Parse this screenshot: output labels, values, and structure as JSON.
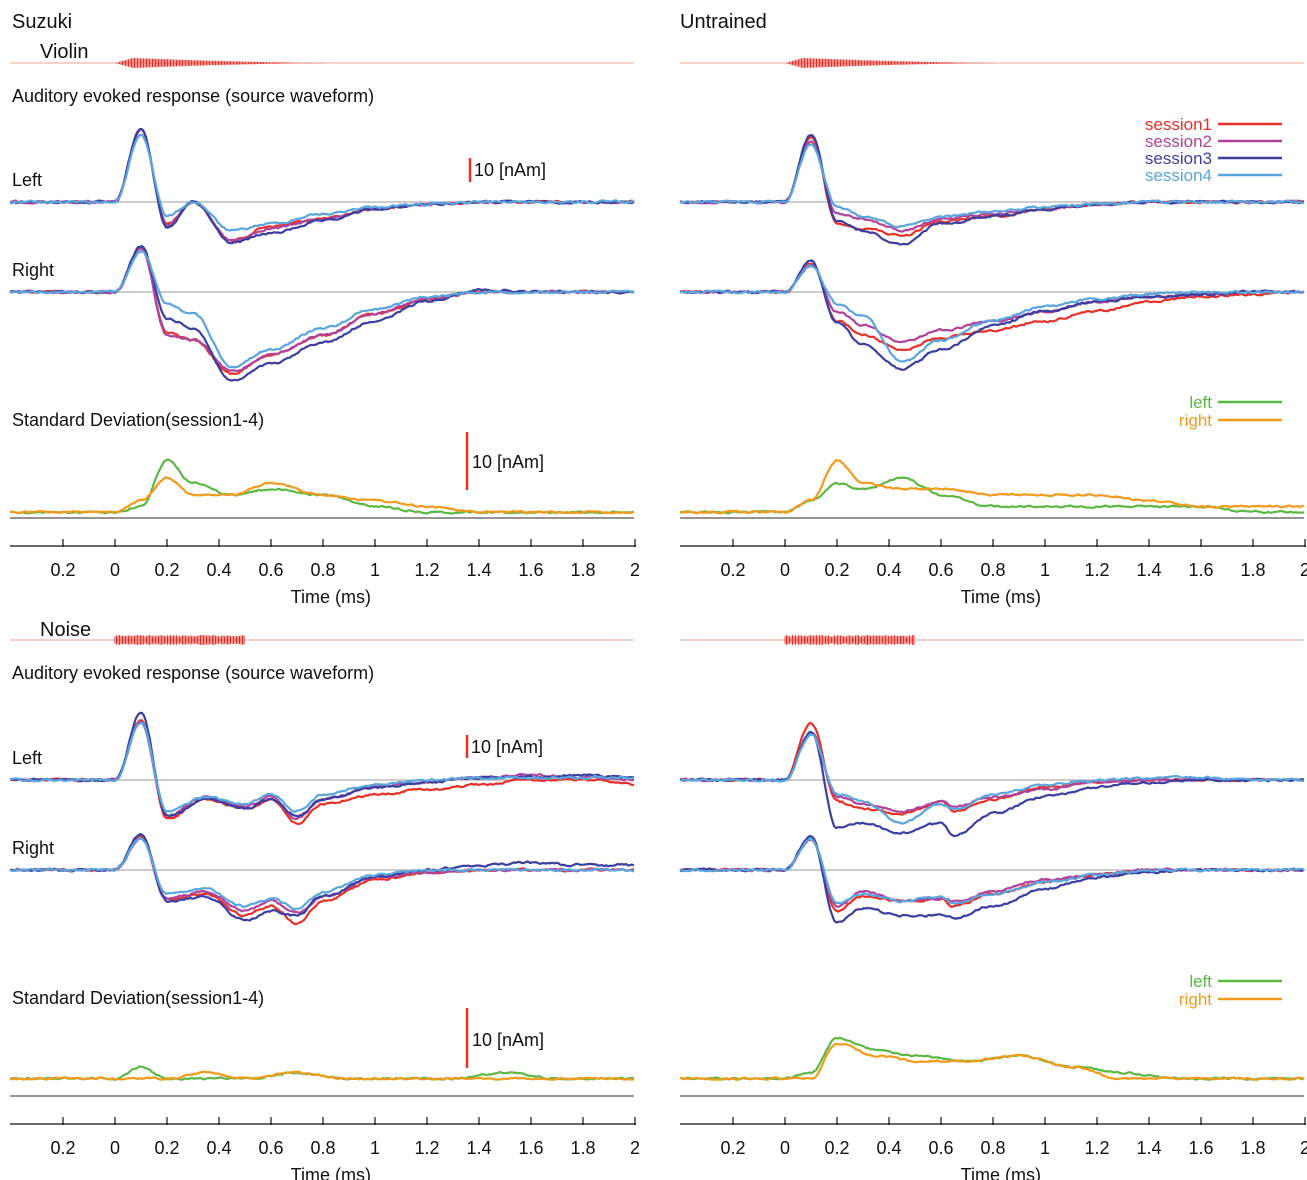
{
  "figure": {
    "group_titles": [
      "Suzuki",
      "Untrained"
    ],
    "stimulus_labels": [
      "Violin",
      "Noise"
    ],
    "aer_title": "Auditory evoked response (source waveform)",
    "sd_title": "Standard Deviation(session1-4)",
    "hemisphere_labels": [
      "Left",
      "Right"
    ],
    "scale_bar_label": "10 [nAm]",
    "x_axis_label": "Time (ms)",
    "x_tick_labels": [
      "0.2",
      "0",
      "0.2",
      "0.4",
      "0.6",
      "0.8",
      "1",
      "1.2",
      "1.4",
      "1.6",
      "1.8",
      "2"
    ]
  },
  "colors": {
    "session1": "#e8302a",
    "session2": "#b0449c",
    "session3": "#3a3fa0",
    "session4": "#5aa6dc",
    "left": "#5cb843",
    "right": "#f39a1c",
    "stimulus": "#e8302a",
    "baseline": "#666666"
  },
  "legends": {
    "sessions": [
      "session1",
      "session2",
      "session3",
      "session4"
    ],
    "hemispheres": [
      "left",
      "right"
    ]
  },
  "chart_data": [
    {
      "type": "line",
      "panel": "Suzuki / Violin / Left",
      "xlim": [
        -0.2,
        2
      ],
      "scale_bar_nAm": 10,
      "x": [
        -0.2,
        0,
        0.1,
        0.2,
        0.3,
        0.45,
        0.6,
        0.8,
        1.0,
        1.2,
        1.4,
        1.6,
        1.8,
        2.0
      ],
      "series": [
        {
          "name": "session1",
          "values": [
            0,
            0,
            30,
            -9,
            0,
            -16,
            -10,
            -7,
            -3,
            -1,
            0,
            0,
            0,
            0
          ]
        },
        {
          "name": "session2",
          "values": [
            0,
            0,
            30,
            -10,
            0,
            -16,
            -11,
            -7,
            -3,
            -1,
            0,
            0,
            0,
            0
          ]
        },
        {
          "name": "session3",
          "values": [
            0,
            0,
            31,
            -11,
            0,
            -17,
            -13,
            -8,
            -3,
            -1,
            0,
            0,
            0,
            0
          ]
        },
        {
          "name": "session4",
          "values": [
            0,
            0,
            28,
            -6,
            0,
            -12,
            -9,
            -5,
            -2,
            -1,
            0,
            0,
            0,
            0
          ]
        }
      ]
    },
    {
      "type": "line",
      "panel": "Suzuki / Violin / Right",
      "xlim": [
        -0.2,
        2
      ],
      "scale_bar_nAm": 10,
      "x": [
        -0.2,
        0,
        0.1,
        0.2,
        0.3,
        0.45,
        0.6,
        0.8,
        1.0,
        1.2,
        1.4,
        1.6,
        1.8,
        2.0
      ],
      "series": [
        {
          "name": "session1",
          "values": [
            0,
            0,
            18,
            -17,
            -20,
            -34,
            -26,
            -18,
            -9,
            -3,
            0,
            0,
            0,
            0
          ]
        },
        {
          "name": "session2",
          "values": [
            0,
            0,
            18,
            -18,
            -20,
            -33,
            -26,
            -18,
            -9,
            -3,
            0,
            0,
            0,
            0
          ]
        },
        {
          "name": "session3",
          "values": [
            0,
            0,
            19,
            -11,
            -15,
            -37,
            -30,
            -21,
            -12,
            -4,
            1,
            0,
            0,
            0
          ]
        },
        {
          "name": "session4",
          "values": [
            0,
            0,
            17,
            -5,
            -9,
            -31,
            -24,
            -15,
            -7,
            -2,
            0,
            0,
            0,
            0
          ]
        }
      ]
    },
    {
      "type": "line",
      "panel": "Suzuki / Violin / Standard Deviation",
      "xlim": [
        -0.2,
        2
      ],
      "scale_bar_nAm": 10,
      "x": [
        -0.2,
        0,
        0.1,
        0.2,
        0.3,
        0.45,
        0.6,
        0.8,
        1.0,
        1.2,
        1.4,
        1.6,
        1.8,
        2.0
      ],
      "series": [
        {
          "name": "left",
          "values": [
            1,
            1,
            2,
            10,
            6,
            4,
            5,
            4,
            2,
            1,
            1,
            1,
            1,
            1
          ]
        },
        {
          "name": "right",
          "values": [
            1,
            1,
            3,
            7,
            4,
            4,
            6,
            4,
            3,
            2,
            1,
            1,
            1,
            1
          ]
        }
      ]
    },
    {
      "type": "line",
      "panel": "Untrained / Violin / Left",
      "xlim": [
        -0.2,
        2
      ],
      "scale_bar_nAm": 10,
      "x": [
        -0.2,
        0,
        0.1,
        0.2,
        0.3,
        0.45,
        0.6,
        0.8,
        1.0,
        1.2,
        1.4,
        1.6,
        1.8,
        2.0
      ],
      "series": [
        {
          "name": "session1",
          "values": [
            0,
            0,
            27,
            -9,
            -11,
            -14,
            -8,
            -6,
            -3,
            -1,
            0,
            0,
            0,
            0
          ]
        },
        {
          "name": "session2",
          "values": [
            0,
            0,
            25,
            -5,
            -7,
            -12,
            -7,
            -5,
            -3,
            -1,
            0,
            0,
            0,
            0
          ]
        },
        {
          "name": "session3",
          "values": [
            0,
            0,
            28,
            -8,
            -12,
            -18,
            -9,
            -6,
            -3,
            -1,
            0,
            0,
            0,
            0
          ]
        },
        {
          "name": "session4",
          "values": [
            0,
            0,
            24,
            -2,
            -6,
            -10,
            -6,
            -4,
            -2,
            -1,
            0,
            0,
            0,
            0
          ]
        }
      ]
    },
    {
      "type": "line",
      "panel": "Untrained / Violin / Right",
      "xlim": [
        -0.2,
        2
      ],
      "scale_bar_nAm": 10,
      "x": [
        -0.2,
        0,
        0.1,
        0.2,
        0.3,
        0.45,
        0.6,
        0.8,
        1.0,
        1.2,
        1.4,
        1.6,
        1.8,
        2.0
      ],
      "series": [
        {
          "name": "session1",
          "values": [
            0,
            0,
            12,
            -12,
            -18,
            -24,
            -19,
            -16,
            -12,
            -8,
            -4,
            -2,
            -1,
            0
          ]
        },
        {
          "name": "session2",
          "values": [
            0,
            0,
            11,
            -8,
            -14,
            -21,
            -16,
            -12,
            -8,
            -4,
            -2,
            -1,
            0,
            0
          ]
        },
        {
          "name": "session3",
          "values": [
            0,
            0,
            13,
            -13,
            -22,
            -32,
            -24,
            -14,
            -8,
            -4,
            -2,
            -1,
            0,
            0
          ]
        },
        {
          "name": "session4",
          "values": [
            0,
            0,
            11,
            -5,
            -10,
            -29,
            -20,
            -12,
            -6,
            -3,
            -1,
            0,
            0,
            0
          ]
        }
      ]
    },
    {
      "type": "line",
      "panel": "Untrained / Violin / Standard Deviation",
      "xlim": [
        -0.2,
        2
      ],
      "scale_bar_nAm": 10,
      "x": [
        -0.2,
        0,
        0.1,
        0.2,
        0.3,
        0.45,
        0.6,
        0.8,
        1.0,
        1.2,
        1.4,
        1.6,
        1.8,
        2.0
      ],
      "series": [
        {
          "name": "left",
          "values": [
            1,
            1,
            3,
            6,
            5,
            7,
            4,
            2,
            2,
            2,
            2,
            2,
            1,
            1
          ]
        },
        {
          "name": "right",
          "values": [
            1,
            1,
            3,
            10,
            6,
            5,
            5,
            4,
            4,
            4,
            3,
            2,
            2,
            2
          ]
        }
      ]
    },
    {
      "type": "line",
      "panel": "Suzuki / Noise / Left",
      "xlim": [
        -0.2,
        2
      ],
      "scale_bar_nAm": 10,
      "x": [
        -0.2,
        0,
        0.1,
        0.2,
        0.35,
        0.5,
        0.6,
        0.7,
        0.8,
        1.0,
        1.2,
        1.4,
        1.6,
        1.8,
        2.0
      ],
      "series": [
        {
          "name": "session1",
          "values": [
            0,
            0,
            25,
            -16,
            -8,
            -12,
            -8,
            -18,
            -10,
            -6,
            -4,
            -2,
            0,
            0,
            -2
          ]
        },
        {
          "name": "session2",
          "values": [
            0,
            0,
            24,
            -15,
            -7,
            -11,
            -7,
            -16,
            -8,
            -3,
            -1,
            1,
            2,
            1,
            0
          ]
        },
        {
          "name": "session3",
          "values": [
            0,
            0,
            28,
            -15,
            -8,
            -12,
            -8,
            -15,
            -8,
            -3,
            -1,
            1,
            1,
            2,
            1
          ]
        },
        {
          "name": "session4",
          "values": [
            0,
            0,
            24,
            -13,
            -7,
            -10,
            -6,
            -13,
            -6,
            -2,
            0,
            1,
            1,
            1,
            1
          ]
        }
      ]
    },
    {
      "type": "line",
      "panel": "Suzuki / Noise / Right",
      "xlim": [
        -0.2,
        2
      ],
      "scale_bar_nAm": 10,
      "x": [
        -0.2,
        0,
        0.1,
        0.2,
        0.35,
        0.5,
        0.6,
        0.7,
        0.8,
        1.0,
        1.2,
        1.4,
        1.6,
        1.8,
        2.0
      ],
      "series": [
        {
          "name": "session1",
          "values": [
            0,
            0,
            14,
            -12,
            -10,
            -19,
            -15,
            -22,
            -13,
            -4,
            -1,
            0,
            0,
            0,
            0
          ]
        },
        {
          "name": "session2",
          "values": [
            0,
            0,
            13,
            -12,
            -9,
            -17,
            -13,
            -18,
            -11,
            -3,
            -1,
            0,
            0,
            0,
            0
          ]
        },
        {
          "name": "session3",
          "values": [
            0,
            0,
            15,
            -13,
            -11,
            -21,
            -17,
            -19,
            -11,
            -3,
            0,
            2,
            3,
            2,
            2
          ]
        },
        {
          "name": "session4",
          "values": [
            0,
            0,
            13,
            -10,
            -8,
            -15,
            -12,
            -16,
            -9,
            -2,
            0,
            0,
            0,
            0,
            0
          ]
        }
      ]
    },
    {
      "type": "line",
      "panel": "Suzuki / Noise / Standard Deviation",
      "xlim": [
        -0.2,
        2
      ],
      "scale_bar_nAm": 10,
      "x": [
        -0.2,
        0,
        0.1,
        0.2,
        0.35,
        0.5,
        0.7,
        0.9,
        1.1,
        1.3,
        1.5,
        1.7,
        1.9,
        2.0
      ],
      "series": [
        {
          "name": "left",
          "values": [
            3,
            3,
            5,
            3,
            3,
            3,
            4,
            3,
            3,
            3,
            4,
            3,
            3,
            3
          ]
        },
        {
          "name": "right",
          "values": [
            3,
            3,
            3,
            3,
            4,
            3,
            4,
            3,
            3,
            3,
            3,
            3,
            3,
            3
          ]
        }
      ]
    },
    {
      "type": "line",
      "panel": "Untrained / Noise / Left",
      "xlim": [
        -0.2,
        2
      ],
      "scale_bar_nAm": 10,
      "x": [
        -0.2,
        0,
        0.1,
        0.2,
        0.3,
        0.45,
        0.6,
        0.65,
        0.8,
        1.0,
        1.2,
        1.4,
        1.6,
        1.8,
        2.0
      ],
      "series": [
        {
          "name": "session1",
          "values": [
            0,
            0,
            24,
            -9,
            -12,
            -14,
            -9,
            -13,
            -8,
            -3,
            -1,
            0,
            0,
            0,
            0
          ]
        },
        {
          "name": "session2",
          "values": [
            0,
            0,
            20,
            -7,
            -10,
            -13,
            -9,
            -11,
            -7,
            -4,
            -1,
            0,
            0,
            0,
            0
          ]
        },
        {
          "name": "session3",
          "values": [
            0,
            0,
            20,
            -20,
            -18,
            -22,
            -18,
            -23,
            -14,
            -7,
            -3,
            -1,
            0,
            0,
            0
          ]
        },
        {
          "name": "session4",
          "values": [
            0,
            0,
            19,
            -6,
            -9,
            -18,
            -10,
            -12,
            -6,
            -2,
            0,
            1,
            1,
            0,
            0
          ]
        }
      ]
    },
    {
      "type": "line",
      "panel": "Untrained / Noise / Right",
      "xlim": [
        -0.2,
        2
      ],
      "scale_bar_nAm": 10,
      "x": [
        -0.2,
        0,
        0.1,
        0.2,
        0.3,
        0.45,
        0.6,
        0.65,
        0.8,
        1.0,
        1.2,
        1.4,
        1.6,
        1.8,
        2.0
      ],
      "series": [
        {
          "name": "session1",
          "values": [
            0,
            0,
            13,
            -17,
            -11,
            -13,
            -12,
            -15,
            -10,
            -5,
            -2,
            0,
            0,
            0,
            0
          ]
        },
        {
          "name": "session2",
          "values": [
            0,
            0,
            13,
            -15,
            -9,
            -13,
            -12,
            -13,
            -9,
            -4,
            -2,
            0,
            0,
            0,
            0
          ]
        },
        {
          "name": "session3",
          "values": [
            0,
            0,
            14,
            -22,
            -16,
            -19,
            -19,
            -20,
            -15,
            -8,
            -3,
            -1,
            0,
            0,
            0
          ]
        },
        {
          "name": "session4",
          "values": [
            0,
            0,
            13,
            -14,
            -10,
            -13,
            -11,
            -14,
            -10,
            -5,
            -2,
            0,
            0,
            0,
            0
          ]
        }
      ]
    },
    {
      "type": "line",
      "panel": "Untrained / Noise / Standard Deviation",
      "xlim": [
        -0.2,
        2
      ],
      "scale_bar_nAm": 10,
      "x": [
        -0.2,
        0,
        0.1,
        0.2,
        0.35,
        0.5,
        0.7,
        0.9,
        1.1,
        1.3,
        1.5,
        1.7,
        1.9,
        2.0
      ],
      "series": [
        {
          "name": "left",
          "values": [
            3,
            3,
            4,
            10,
            8,
            7,
            6,
            7,
            5,
            4,
            3,
            3,
            3,
            3
          ]
        },
        {
          "name": "right",
          "values": [
            3,
            3,
            3,
            9,
            7,
            6,
            6,
            7,
            5,
            3,
            3,
            3,
            3,
            3
          ]
        }
      ]
    }
  ]
}
